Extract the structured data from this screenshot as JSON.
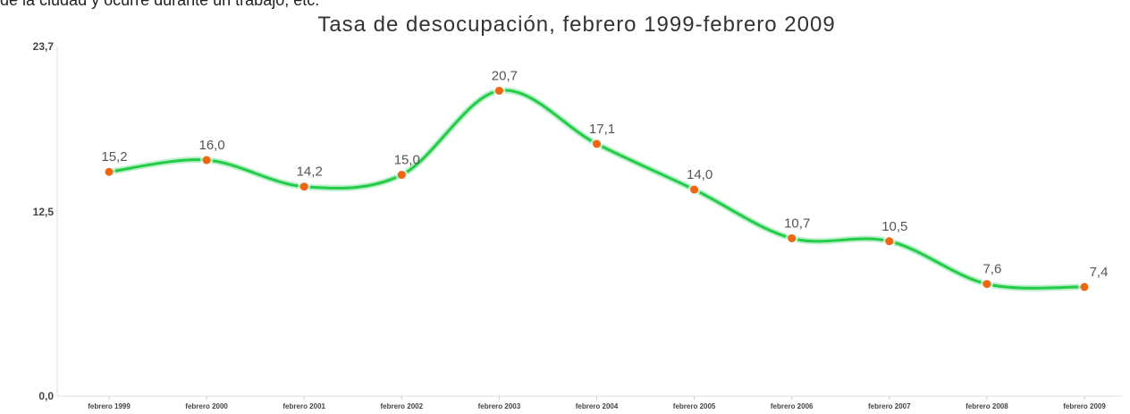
{
  "header_fragment": "de la ciudad y ocurre durante un trabajo, etc.",
  "chart_data": {
    "type": "line",
    "title": "Tasa de desocupación, febrero 1999-febrero 2009",
    "xlabel": "",
    "ylabel": "",
    "categories": [
      "febrero 1999",
      "febrero 2000",
      "febrero 2001",
      "febrero 2002",
      "febrero 2003",
      "febrero 2004",
      "febrero 2005",
      "febrero 2006",
      "febrero 2007",
      "febrero 2008",
      "febrero 2009"
    ],
    "values": [
      15.2,
      16.0,
      14.2,
      15.0,
      20.7,
      17.1,
      14.0,
      10.7,
      10.5,
      7.6,
      7.4
    ],
    "value_labels": [
      "15,2",
      "16,0",
      "14,2",
      "15,0",
      "20,7",
      "17,1",
      "14,0",
      "10,7",
      "10,5",
      "7,6",
      "7,4"
    ],
    "yticks": [
      "0,0",
      "12,5",
      "23,7"
    ],
    "ylim": [
      0,
      23.7
    ],
    "grid": false,
    "line_color": "#22cc44",
    "marker_color": "#ee6611"
  }
}
